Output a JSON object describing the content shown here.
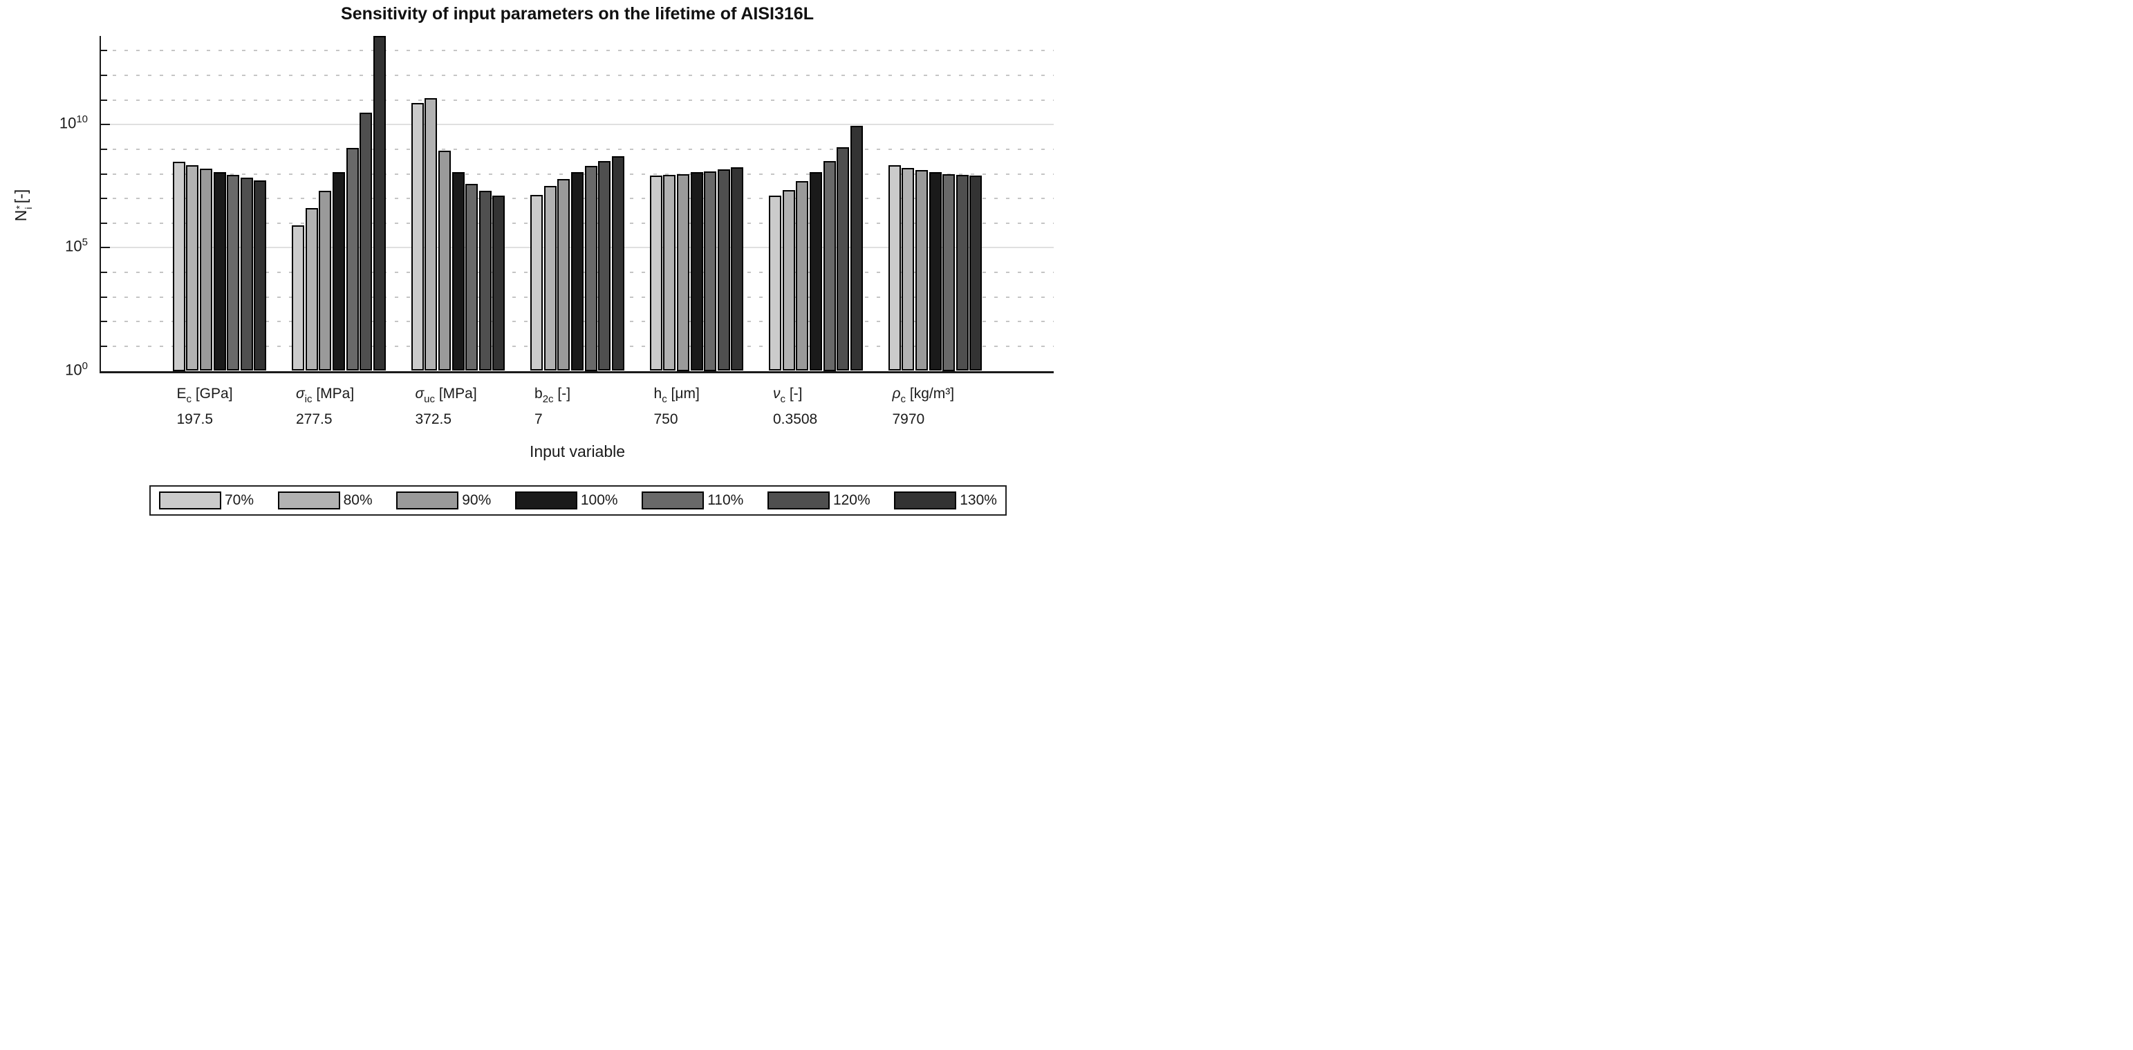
{
  "title": "Sensitivity of input parameters on the lifetime of AISI316L",
  "x_axis": {
    "label": "Input variable"
  },
  "y_axis": {
    "label_base": "N",
    "label_sup": "*",
    "label_sub": "i",
    "label_unit": "[-]",
    "tick_base": "10",
    "major_exps": [
      0,
      5,
      10
    ],
    "minor_exps": [
      1,
      2,
      3,
      4,
      6,
      7,
      8,
      9,
      11,
      12,
      13
    ],
    "min_exp": 0,
    "max_exp": 13.6
  },
  "legend": {
    "labels": [
      "70%",
      "80%",
      "90%",
      "100%",
      "110%",
      "120%",
      "130%"
    ]
  },
  "colors": {
    "series": [
      "#cbcbcb",
      "#b2b2b2",
      "#9a9a9a",
      "#1a1a1a",
      "#696969",
      "#4f4f4f",
      "#333333"
    ],
    "bar_edge": "#000000",
    "axis": "#1a1a1a",
    "grid_major": "#e0e0e0",
    "grid_minor": "#c5c5c5"
  },
  "chart_data": {
    "type": "bar",
    "scale_y": "log10",
    "title": "Sensitivity of input parameters on the lifetime of AISI316L",
    "xlabel": "Input variable",
    "ylabel": "N_i^* [-]",
    "ylim": [
      1,
      40000000000000.0
    ],
    "grid": "on",
    "legend_position": "south-outside",
    "categories": [
      {
        "symbol": "E",
        "italic": false,
        "sub": "c",
        "unit": "[GPa]",
        "value": "197.5"
      },
      {
        "symbol": "σ",
        "italic": true,
        "sub": "ic",
        "unit": "[MPa]",
        "value": "277.5"
      },
      {
        "symbol": "σ",
        "italic": true,
        "sub": "uc",
        "unit": "[MPa]",
        "value": "372.5"
      },
      {
        "symbol": "b",
        "italic": false,
        "sub": "2c",
        "unit": "[-]",
        "value": "7"
      },
      {
        "symbol": "h",
        "italic": false,
        "sub": "c",
        "unit": "[μm]",
        "value": "750"
      },
      {
        "symbol": "ν",
        "italic": true,
        "sub": "c",
        "unit": "[-]",
        "value": "0.3508"
      },
      {
        "symbol": "ρ",
        "italic": true,
        "sub": "c",
        "unit": "[kg/m³]",
        "value": "7970"
      }
    ],
    "series": [
      {
        "name": "70%",
        "color": "#cbcbcb",
        "values": [
          320000000.0,
          790000.0,
          74000000000.0,
          14000000.0,
          84000000.0,
          13000000.0,
          230000000.0
        ]
      },
      {
        "name": "80%",
        "color": "#b2b2b2",
        "values": [
          220000000.0,
          4000000.0,
          120000000000.0,
          32000000.0,
          89000000.0,
          22000000.0,
          170000000.0
        ]
      },
      {
        "name": "90%",
        "color": "#9a9a9a",
        "values": [
          160000000.0,
          20000000.0,
          860000000.0,
          63000000.0,
          100000000.0,
          50000000.0,
          140000000.0
        ]
      },
      {
        "name": "100%",
        "color": "#1a1a1a",
        "values": [
          120000000.0,
          115000000.0,
          120000000.0,
          115000000.0,
          115000000.0,
          115000000.0,
          120000000.0
        ]
      },
      {
        "name": "110%",
        "color": "#696969",
        "values": [
          89000000.0,
          1150000000.0,
          39000000.0,
          210000000.0,
          125000000.0,
          330000000.0,
          100000000.0
        ]
      },
      {
        "name": "120%",
        "color": "#4f4f4f",
        "values": [
          71000000.0,
          30000000000.0,
          20000000.0,
          340000000.0,
          155000000.0,
          1200000000.0,
          93000000.0
        ]
      },
      {
        "name": "130%",
        "color": "#333333",
        "values": [
          55000000.0,
          39000000000000.0,
          13000000.0,
          530000000.0,
          180000000.0,
          8800000000.0,
          87000000.0
        ]
      }
    ]
  }
}
